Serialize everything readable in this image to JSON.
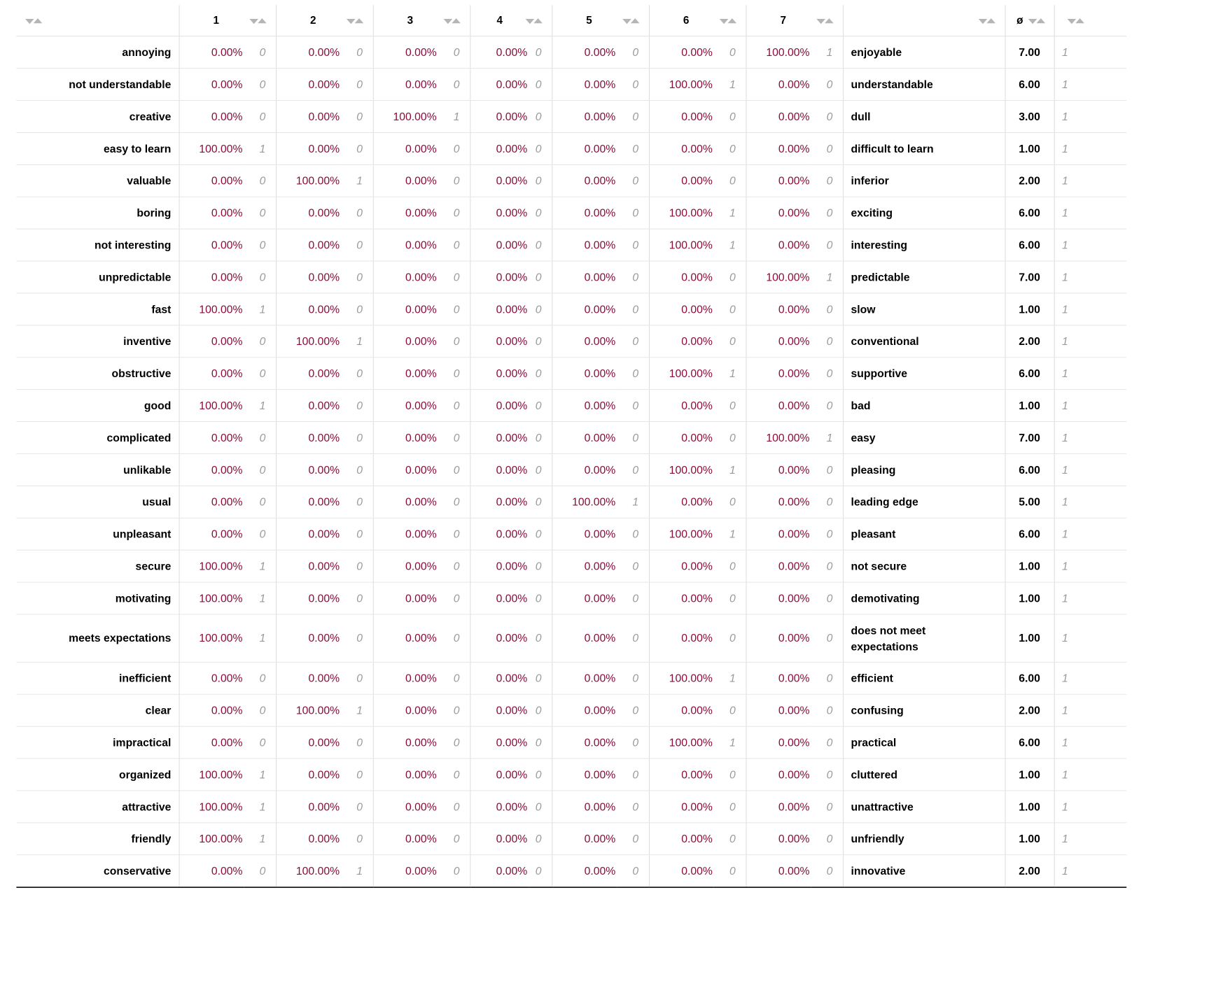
{
  "header": {
    "scale": [
      "1",
      "2",
      "3",
      "4",
      "5",
      "6",
      "7"
    ],
    "avg_symbol": "ø"
  },
  "rows": [
    {
      "left": "annoying",
      "pct": [
        "0.00%",
        "0.00%",
        "0.00%",
        "0.00%",
        "0.00%",
        "0.00%",
        "100.00%"
      ],
      "cnt": [
        "0",
        "0",
        "0",
        "0",
        "0",
        "0",
        "1"
      ],
      "right": "enjoyable",
      "avg": "7.00",
      "n": "1"
    },
    {
      "left": "not understandable",
      "pct": [
        "0.00%",
        "0.00%",
        "0.00%",
        "0.00%",
        "0.00%",
        "100.00%",
        "0.00%"
      ],
      "cnt": [
        "0",
        "0",
        "0",
        "0",
        "0",
        "1",
        "0"
      ],
      "right": "understandable",
      "avg": "6.00",
      "n": "1"
    },
    {
      "left": "creative",
      "pct": [
        "0.00%",
        "0.00%",
        "100.00%",
        "0.00%",
        "0.00%",
        "0.00%",
        "0.00%"
      ],
      "cnt": [
        "0",
        "0",
        "1",
        "0",
        "0",
        "0",
        "0"
      ],
      "right": "dull",
      "avg": "3.00",
      "n": "1"
    },
    {
      "left": "easy to learn",
      "pct": [
        "100.00%",
        "0.00%",
        "0.00%",
        "0.00%",
        "0.00%",
        "0.00%",
        "0.00%"
      ],
      "cnt": [
        "1",
        "0",
        "0",
        "0",
        "0",
        "0",
        "0"
      ],
      "right": "difficult to learn",
      "avg": "1.00",
      "n": "1"
    },
    {
      "left": "valuable",
      "pct": [
        "0.00%",
        "100.00%",
        "0.00%",
        "0.00%",
        "0.00%",
        "0.00%",
        "0.00%"
      ],
      "cnt": [
        "0",
        "1",
        "0",
        "0",
        "0",
        "0",
        "0"
      ],
      "right": "inferior",
      "avg": "2.00",
      "n": "1"
    },
    {
      "left": "boring",
      "pct": [
        "0.00%",
        "0.00%",
        "0.00%",
        "0.00%",
        "0.00%",
        "100.00%",
        "0.00%"
      ],
      "cnt": [
        "0",
        "0",
        "0",
        "0",
        "0",
        "1",
        "0"
      ],
      "right": "exciting",
      "avg": "6.00",
      "n": "1"
    },
    {
      "left": "not interesting",
      "pct": [
        "0.00%",
        "0.00%",
        "0.00%",
        "0.00%",
        "0.00%",
        "100.00%",
        "0.00%"
      ],
      "cnt": [
        "0",
        "0",
        "0",
        "0",
        "0",
        "1",
        "0"
      ],
      "right": "interesting",
      "avg": "6.00",
      "n": "1"
    },
    {
      "left": "unpredictable",
      "pct": [
        "0.00%",
        "0.00%",
        "0.00%",
        "0.00%",
        "0.00%",
        "0.00%",
        "100.00%"
      ],
      "cnt": [
        "0",
        "0",
        "0",
        "0",
        "0",
        "0",
        "1"
      ],
      "right": "predictable",
      "avg": "7.00",
      "n": "1"
    },
    {
      "left": "fast",
      "pct": [
        "100.00%",
        "0.00%",
        "0.00%",
        "0.00%",
        "0.00%",
        "0.00%",
        "0.00%"
      ],
      "cnt": [
        "1",
        "0",
        "0",
        "0",
        "0",
        "0",
        "0"
      ],
      "right": "slow",
      "avg": "1.00",
      "n": "1"
    },
    {
      "left": "inventive",
      "pct": [
        "0.00%",
        "100.00%",
        "0.00%",
        "0.00%",
        "0.00%",
        "0.00%",
        "0.00%"
      ],
      "cnt": [
        "0",
        "1",
        "0",
        "0",
        "0",
        "0",
        "0"
      ],
      "right": "conventional",
      "avg": "2.00",
      "n": "1"
    },
    {
      "left": "obstructive",
      "pct": [
        "0.00%",
        "0.00%",
        "0.00%",
        "0.00%",
        "0.00%",
        "100.00%",
        "0.00%"
      ],
      "cnt": [
        "0",
        "0",
        "0",
        "0",
        "0",
        "1",
        "0"
      ],
      "right": "supportive",
      "avg": "6.00",
      "n": "1"
    },
    {
      "left": "good",
      "pct": [
        "100.00%",
        "0.00%",
        "0.00%",
        "0.00%",
        "0.00%",
        "0.00%",
        "0.00%"
      ],
      "cnt": [
        "1",
        "0",
        "0",
        "0",
        "0",
        "0",
        "0"
      ],
      "right": "bad",
      "avg": "1.00",
      "n": "1"
    },
    {
      "left": "complicated",
      "pct": [
        "0.00%",
        "0.00%",
        "0.00%",
        "0.00%",
        "0.00%",
        "0.00%",
        "100.00%"
      ],
      "cnt": [
        "0",
        "0",
        "0",
        "0",
        "0",
        "0",
        "1"
      ],
      "right": "easy",
      "avg": "7.00",
      "n": "1"
    },
    {
      "left": "unlikable",
      "pct": [
        "0.00%",
        "0.00%",
        "0.00%",
        "0.00%",
        "0.00%",
        "100.00%",
        "0.00%"
      ],
      "cnt": [
        "0",
        "0",
        "0",
        "0",
        "0",
        "1",
        "0"
      ],
      "right": "pleasing",
      "avg": "6.00",
      "n": "1"
    },
    {
      "left": "usual",
      "pct": [
        "0.00%",
        "0.00%",
        "0.00%",
        "0.00%",
        "100.00%",
        "0.00%",
        "0.00%"
      ],
      "cnt": [
        "0",
        "0",
        "0",
        "0",
        "1",
        "0",
        "0"
      ],
      "right": "leading edge",
      "avg": "5.00",
      "n": "1"
    },
    {
      "left": "unpleasant",
      "pct": [
        "0.00%",
        "0.00%",
        "0.00%",
        "0.00%",
        "0.00%",
        "100.00%",
        "0.00%"
      ],
      "cnt": [
        "0",
        "0",
        "0",
        "0",
        "0",
        "1",
        "0"
      ],
      "right": "pleasant",
      "avg": "6.00",
      "n": "1"
    },
    {
      "left": "secure",
      "pct": [
        "100.00%",
        "0.00%",
        "0.00%",
        "0.00%",
        "0.00%",
        "0.00%",
        "0.00%"
      ],
      "cnt": [
        "1",
        "0",
        "0",
        "0",
        "0",
        "0",
        "0"
      ],
      "right": "not secure",
      "avg": "1.00",
      "n": "1"
    },
    {
      "left": "motivating",
      "pct": [
        "100.00%",
        "0.00%",
        "0.00%",
        "0.00%",
        "0.00%",
        "0.00%",
        "0.00%"
      ],
      "cnt": [
        "1",
        "0",
        "0",
        "0",
        "0",
        "0",
        "0"
      ],
      "right": "demotivating",
      "avg": "1.00",
      "n": "1"
    },
    {
      "left": "meets expectations",
      "pct": [
        "100.00%",
        "0.00%",
        "0.00%",
        "0.00%",
        "0.00%",
        "0.00%",
        "0.00%"
      ],
      "cnt": [
        "1",
        "0",
        "0",
        "0",
        "0",
        "0",
        "0"
      ],
      "right": "does not meet expectations",
      "avg": "1.00",
      "n": "1"
    },
    {
      "left": "inefficient",
      "pct": [
        "0.00%",
        "0.00%",
        "0.00%",
        "0.00%",
        "0.00%",
        "100.00%",
        "0.00%"
      ],
      "cnt": [
        "0",
        "0",
        "0",
        "0",
        "0",
        "1",
        "0"
      ],
      "right": "efficient",
      "avg": "6.00",
      "n": "1"
    },
    {
      "left": "clear",
      "pct": [
        "0.00%",
        "100.00%",
        "0.00%",
        "0.00%",
        "0.00%",
        "0.00%",
        "0.00%"
      ],
      "cnt": [
        "0",
        "1",
        "0",
        "0",
        "0",
        "0",
        "0"
      ],
      "right": "confusing",
      "avg": "2.00",
      "n": "1"
    },
    {
      "left": "impractical",
      "pct": [
        "0.00%",
        "0.00%",
        "0.00%",
        "0.00%",
        "0.00%",
        "100.00%",
        "0.00%"
      ],
      "cnt": [
        "0",
        "0",
        "0",
        "0",
        "0",
        "1",
        "0"
      ],
      "right": "practical",
      "avg": "6.00",
      "n": "1"
    },
    {
      "left": "organized",
      "pct": [
        "100.00%",
        "0.00%",
        "0.00%",
        "0.00%",
        "0.00%",
        "0.00%",
        "0.00%"
      ],
      "cnt": [
        "1",
        "0",
        "0",
        "0",
        "0",
        "0",
        "0"
      ],
      "right": "cluttered",
      "avg": "1.00",
      "n": "1"
    },
    {
      "left": "attractive",
      "pct": [
        "100.00%",
        "0.00%",
        "0.00%",
        "0.00%",
        "0.00%",
        "0.00%",
        "0.00%"
      ],
      "cnt": [
        "1",
        "0",
        "0",
        "0",
        "0",
        "0",
        "0"
      ],
      "right": "unattractive",
      "avg": "1.00",
      "n": "1"
    },
    {
      "left": "friendly",
      "pct": [
        "100.00%",
        "0.00%",
        "0.00%",
        "0.00%",
        "0.00%",
        "0.00%",
        "0.00%"
      ],
      "cnt": [
        "1",
        "0",
        "0",
        "0",
        "0",
        "0",
        "0"
      ],
      "right": "unfriendly",
      "avg": "1.00",
      "n": "1"
    },
    {
      "left": "conservative",
      "pct": [
        "0.00%",
        "100.00%",
        "0.00%",
        "0.00%",
        "0.00%",
        "0.00%",
        "0.00%"
      ],
      "cnt": [
        "0",
        "1",
        "0",
        "0",
        "0",
        "0",
        "0"
      ],
      "right": "innovative",
      "avg": "2.00",
      "n": "1"
    }
  ],
  "colors": {
    "percent_text": "#8a0a3a",
    "count_text": "#9a9a9a",
    "sort_arrow": "#b5b5b5"
  },
  "icons": {
    "sort": "sort-arrows-icon"
  }
}
